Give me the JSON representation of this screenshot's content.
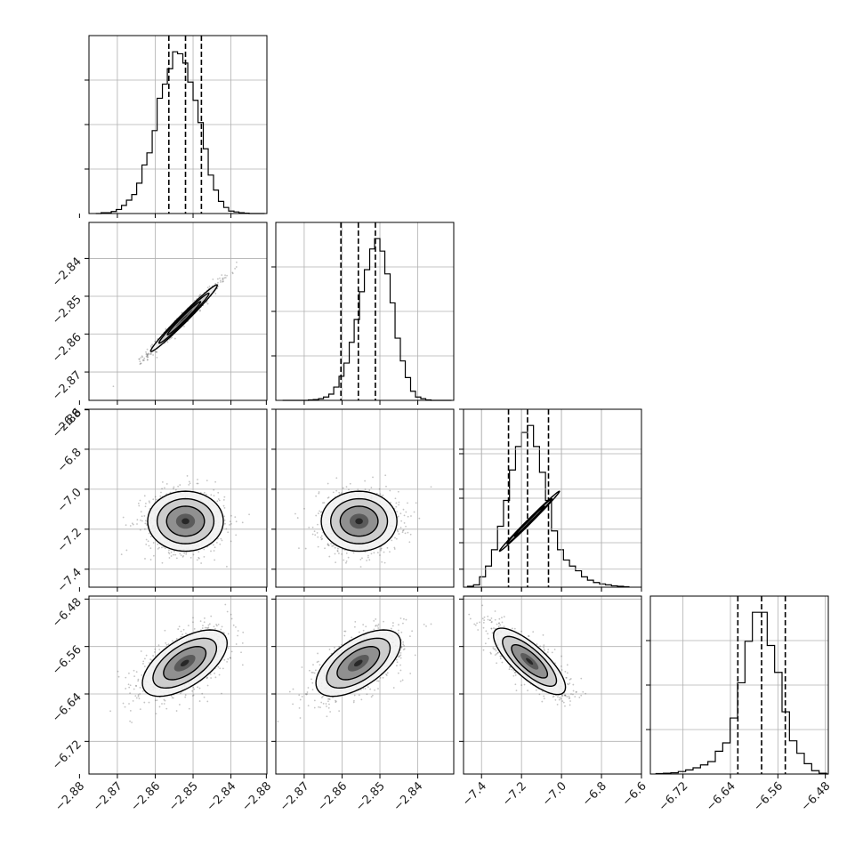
{
  "colors": {
    "foreground": "#000000",
    "grid": "#b0b0b0",
    "points": "#555555",
    "background": "#ffffff"
  },
  "chart_data": {
    "type": "corner",
    "title": "",
    "grid": true,
    "parameters": [
      {
        "range": [
          -2.8775,
          -2.8305
        ],
        "ticks": [
          -2.88,
          -2.87,
          -2.86,
          -2.85,
          -2.84
        ],
        "tick_labels": [
          "−2.88",
          "−2.87",
          "−2.86",
          "−2.85",
          "−2.84"
        ]
      },
      {
        "range": [
          -2.8775,
          -2.8305
        ],
        "ticks": [
          -2.88,
          -2.87,
          -2.86,
          -2.85,
          -2.84
        ],
        "tick_labels": [
          "−2.88",
          "−2.87",
          "−2.86",
          "−2.85",
          "−2.84"
        ]
      },
      {
        "range": [
          -7.49,
          -6.6
        ],
        "ticks": [
          -7.4,
          -7.2,
          -7.0,
          -6.8,
          -6.6
        ],
        "tick_labels": [
          "−7.4",
          "−7.2",
          "−7.0",
          "−6.8",
          "−6.6"
        ]
      },
      {
        "range": [
          -6.775,
          -6.475
        ],
        "ticks": [
          -6.72,
          -6.64,
          -6.56,
          -6.48
        ],
        "tick_labels": [
          "−6.72",
          "−6.64",
          "−6.56",
          "−6.48"
        ]
      }
    ],
    "marginals": [
      {
        "quantiles": [
          -2.8564,
          -2.852,
          -2.8478
        ],
        "bins": [
          -2.8757,
          -2.8743,
          -2.873,
          -2.8716,
          -2.8703,
          -2.8689,
          -2.8676,
          -2.8662,
          -2.8649,
          -2.8635,
          -2.8622,
          -2.8608,
          -2.8595,
          -2.8581,
          -2.8568,
          -2.8554,
          -2.8541,
          -2.8527,
          -2.8514,
          -2.85,
          -2.8487,
          -2.8473,
          -2.846,
          -2.8446,
          -2.8433,
          -2.8419,
          -2.8406,
          -2.8392,
          -2.8379,
          -2.8365,
          -2.8352,
          -2.8338,
          -2.8325,
          -2.8311
        ],
        "counts": [
          0,
          2,
          2,
          5,
          10,
          20,
          33,
          47,
          75,
          120,
          150,
          205,
          285,
          320,
          358,
          400,
          395,
          372,
          325,
          280,
          225,
          160,
          95,
          58,
          30,
          15,
          6,
          4,
          2,
          1,
          0,
          0,
          0
        ]
      },
      {
        "quantiles": [
          -2.8603,
          -2.8557,
          -2.8512
        ],
        "bins": [
          -2.8757,
          -2.8743,
          -2.873,
          -2.8716,
          -2.8703,
          -2.8689,
          -2.8676,
          -2.8662,
          -2.8649,
          -2.8635,
          -2.8622,
          -2.8608,
          -2.8595,
          -2.8581,
          -2.8568,
          -2.8554,
          -2.8541,
          -2.8527,
          -2.8514,
          -2.85,
          -2.8487,
          -2.8473,
          -2.846,
          -2.8446,
          -2.8433,
          -2.8419,
          -2.8406,
          -2.8392,
          -2.8379,
          -2.8365,
          -2.8352,
          -2.8338,
          -2.8325,
          -2.8311
        ],
        "counts": [
          0,
          0,
          0,
          0,
          0,
          1,
          2,
          4,
          8,
          15,
          32,
          58,
          90,
          140,
          195,
          262,
          315,
          365,
          390,
          360,
          305,
          235,
          150,
          95,
          55,
          22,
          8,
          4,
          1,
          0,
          0,
          0,
          0
        ]
      },
      {
        "quantiles": [
          -7.265,
          -7.17,
          -7.065
        ],
        "bins": [
          -7.47,
          -7.44,
          -7.41,
          -7.38,
          -7.35,
          -7.32,
          -7.29,
          -7.26,
          -7.23,
          -7.2,
          -7.17,
          -7.14,
          -7.11,
          -7.08,
          -7.05,
          -7.02,
          -6.99,
          -6.96,
          -6.93,
          -6.9,
          -6.87,
          -6.84,
          -6.81,
          -6.78,
          -6.75,
          -6.72,
          -6.69,
          -6.66
        ],
        "counts": [
          2,
          5,
          22,
          45,
          80,
          130,
          185,
          250,
          300,
          330,
          345,
          300,
          245,
          185,
          120,
          80,
          58,
          45,
          35,
          22,
          15,
          10,
          7,
          5,
          3,
          2,
          1
        ]
      },
      {
        "quantiles": [
          -6.6275,
          -6.5875,
          -6.5475
        ],
        "bins": [
          -6.7655,
          -6.753,
          -6.7405,
          -6.728,
          -6.7155,
          -6.703,
          -6.6905,
          -6.678,
          -6.6655,
          -6.653,
          -6.6405,
          -6.628,
          -6.6155,
          -6.603,
          -6.5905,
          -6.578,
          -6.5655,
          -6.553,
          -6.5405,
          -6.528,
          -6.5155,
          -6.503,
          -6.4905,
          -6.478,
          -6.4755
        ],
        "counts": [
          1,
          2,
          3,
          6,
          10,
          15,
          22,
          30,
          55,
          75,
          135,
          220,
          320,
          390,
          390,
          310,
          245,
          150,
          80,
          50,
          25,
          8,
          2,
          0
        ]
      }
    ],
    "pairs": [
      {
        "row": 1,
        "col": 0,
        "center": [
          -2.8524,
          -2.8558
        ],
        "sigma": [
          0.0044,
          0.0044
        ],
        "corr": 0.985
      },
      {
        "row": 2,
        "col": 0,
        "center": [
          -2.852,
          -7.16
        ],
        "sigma": [
          0.005,
          0.075
        ],
        "corr": 0.0
      },
      {
        "row": 2,
        "col": 1,
        "center": [
          -2.8555,
          -7.16
        ],
        "sigma": [
          0.005,
          0.075
        ],
        "corr": 0.0
      },
      {
        "row": 2,
        "col": 2,
        "center": [
          -7.16,
          -7.16
        ],
        "sigma": [
          0.075,
          0.075
        ],
        "corr": 1.0,
        "diagonal": true
      },
      {
        "row": 3,
        "col": 0,
        "center": [
          -2.8522,
          -6.588
        ],
        "sigma": [
          0.0056,
          0.028
        ],
        "corr": 0.6
      },
      {
        "row": 3,
        "col": 1,
        "center": [
          -2.8557,
          -6.588
        ],
        "sigma": [
          0.0056,
          0.028
        ],
        "corr": 0.6
      },
      {
        "row": 3,
        "col": 2,
        "center": [
          -7.16,
          -6.585
        ],
        "sigma": [
          0.09,
          0.028
        ],
        "corr": -0.78
      }
    ]
  }
}
